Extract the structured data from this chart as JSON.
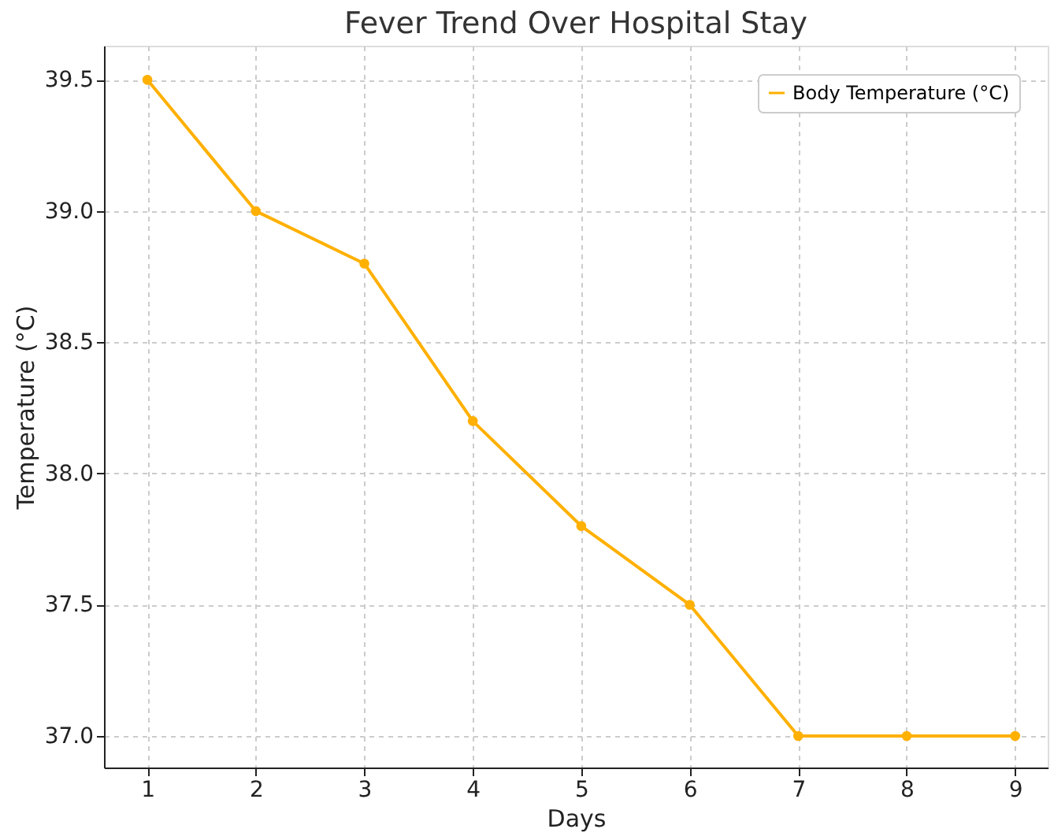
{
  "chart_data": {
    "type": "line",
    "title": "Fever Trend Over Hospital Stay",
    "xlabel": "Days",
    "ylabel": "Temperature (°C)",
    "x": [
      1,
      2,
      3,
      4,
      5,
      6,
      7,
      8,
      9
    ],
    "series": [
      {
        "name": "Body Temperature (°C)",
        "color": "#ffb000",
        "values": [
          39.5,
          39.0,
          38.8,
          38.2,
          37.8,
          37.5,
          37.0,
          37.0,
          37.0
        ]
      }
    ],
    "xlim": [
      0.6,
      9.3
    ],
    "xticks": [
      1,
      2,
      3,
      4,
      5,
      6,
      7,
      8,
      9
    ],
    "ylim": [
      36.88,
      39.63
    ],
    "yticks": [
      {
        "value": 37.0,
        "label": "37.0"
      },
      {
        "value": 37.5,
        "label": "37.5"
      },
      {
        "value": 38.0,
        "label": "38.0"
      },
      {
        "value": 38.5,
        "label": "38.5"
      },
      {
        "value": 39.0,
        "label": "39.0"
      },
      {
        "value": 39.5,
        "label": "39.5"
      }
    ],
    "grid": true,
    "legend": "top right",
    "marker": "circle",
    "line_style": "solid"
  }
}
